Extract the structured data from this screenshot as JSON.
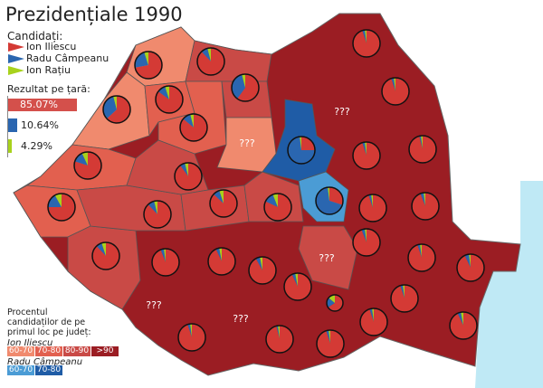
{
  "title": "Prezidențiale 1990",
  "legend": {
    "heading": "Candidați:",
    "candidates": [
      {
        "name": "Ion Iliescu",
        "color": "#d43a35"
      },
      {
        "name": "Radu Câmpeanu",
        "color": "#2a66b0"
      },
      {
        "name": "Ion Rațiu",
        "color": "#a8d21c"
      }
    ]
  },
  "national": {
    "heading": "Rezultat pe țară:",
    "results": [
      {
        "candidate": "Ion Iliescu",
        "percent": 85.07,
        "label": "85.07%"
      },
      {
        "candidate": "Radu Câmpeanu",
        "percent": 10.64,
        "label": "10.64%"
      },
      {
        "candidate": "Ion Rațiu",
        "percent": 4.29,
        "label": "4.29%"
      }
    ]
  },
  "scale": {
    "heading": "Procentul candidaților de pe primul loc pe județ:",
    "iliescu_label": "Ion Iliescu",
    "iliescu_bins": [
      {
        "label": "60-70",
        "color": "#f08a6e"
      },
      {
        "label": "70-80",
        "color": "#e2604f"
      },
      {
        "label": "80-90",
        "color": "#c94a46"
      },
      {
        "label": ">90",
        "color": "#9b1d23"
      }
    ],
    "campeanu_label": "Radu Câmpeanu",
    "campeanu_bins": [
      {
        "label": "60-70",
        "color": "#4b9cd5"
      },
      {
        "label": "70-80",
        "color": "#1f5ca6"
      }
    ]
  },
  "unknown_label": "???",
  "sea_color": "#bfe9f5",
  "counties_pies": [
    {
      "iliescu": 72,
      "campeanu": 23,
      "ratiu": 5
    },
    {
      "iliescu": 88,
      "campeanu": 8,
      "ratiu": 4
    },
    {
      "iliescu": 95,
      "campeanu": 3,
      "ratiu": 2
    },
    {
      "iliescu": 60,
      "campeanu": 36,
      "ratiu": 4
    },
    {
      "iliescu": 63,
      "campeanu": 33,
      "ratiu": 4
    },
    {
      "iliescu": 85,
      "campeanu": 10,
      "ratiu": 5
    },
    {
      "iliescu": 86,
      "campeanu": 10,
      "ratiu": 4
    },
    {
      "iliescu": 95,
      "campeanu": 3,
      "ratiu": 2
    },
    {
      "iliescu": 25,
      "campeanu": 73,
      "ratiu": 2
    },
    {
      "iliescu": 95,
      "campeanu": 3,
      "ratiu": 2
    },
    {
      "iliescu": 96,
      "campeanu": 2,
      "ratiu": 2
    },
    {
      "iliescu": 80,
      "campeanu": 13,
      "ratiu": 7
    },
    {
      "iliescu": 90,
      "campeanu": 6,
      "ratiu": 4
    },
    {
      "iliescu": 30,
      "campeanu": 68,
      "ratiu": 2
    },
    {
      "iliescu": 75,
      "campeanu": 17,
      "ratiu": 8
    },
    {
      "iliescu": 88,
      "campeanu": 8,
      "ratiu": 4
    },
    {
      "iliescu": 87,
      "campeanu": 8,
      "ratiu": 5
    },
    {
      "iliescu": 82,
      "campeanu": 12,
      "ratiu": 6
    },
    {
      "iliescu": 95,
      "campeanu": 3,
      "ratiu": 2
    },
    {
      "iliescu": 94,
      "campeanu": 4,
      "ratiu": 2
    },
    {
      "iliescu": 88,
      "campeanu": 7,
      "ratiu": 5
    },
    {
      "iliescu": 94,
      "campeanu": 4,
      "ratiu": 2
    },
    {
      "iliescu": 93,
      "campeanu": 4,
      "ratiu": 3
    },
    {
      "iliescu": 92,
      "campeanu": 5,
      "ratiu": 3
    },
    {
      "iliescu": 94,
      "campeanu": 4,
      "ratiu": 2
    },
    {
      "iliescu": 95,
      "campeanu": 3,
      "ratiu": 2
    },
    {
      "iliescu": 93,
      "campeanu": 5,
      "ratiu": 2
    },
    {
      "iliescu": 93,
      "campeanu": 4,
      "ratiu": 3
    },
    {
      "iliescu": 95,
      "campeanu": 3,
      "ratiu": 2
    },
    {
      "iliescu": 66,
      "campeanu": 20,
      "ratiu": 14
    },
    {
      "iliescu": 95,
      "campeanu": 3,
      "ratiu": 2
    },
    {
      "iliescu": 93,
      "campeanu": 4,
      "ratiu": 3
    },
    {
      "iliescu": 95,
      "campeanu": 3,
      "ratiu": 2
    },
    {
      "iliescu": 96,
      "campeanu": 2,
      "ratiu": 2
    },
    {
      "iliescu": 95,
      "campeanu": 3,
      "ratiu": 2
    }
  ]
}
